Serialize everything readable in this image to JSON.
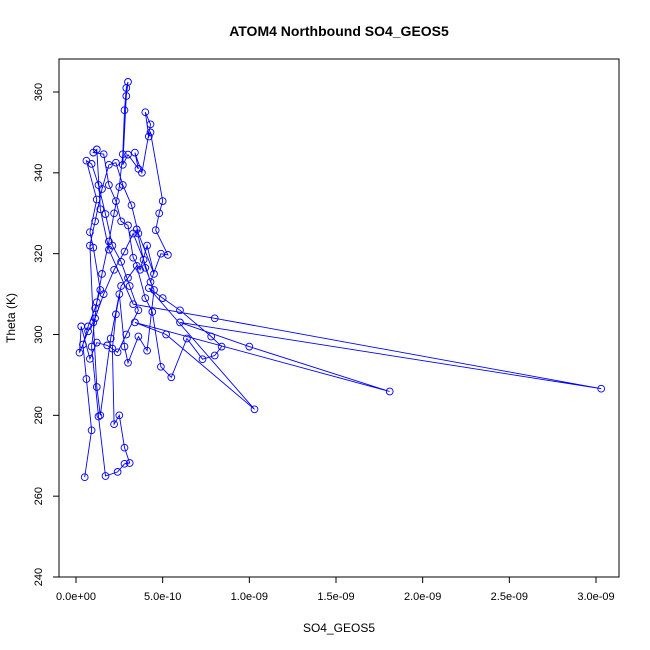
{
  "chart_data": {
    "type": "line",
    "title": "ATOM4 Northbound SO4_GEOS5",
    "xlabel": "SO4_GEOS5",
    "ylabel": "Theta (K)",
    "xlim": [
      0,
      3e-09
    ],
    "ylim": [
      240,
      365
    ],
    "x_ticks": [
      0,
      5e-10,
      1e-09,
      1.5e-09,
      2e-09,
      2.5e-09,
      3e-09
    ],
    "x_tick_labels": [
      "0.0e+00",
      "5.0e-10",
      "1.0e-09",
      "1.5e-09",
      "2.0e-09",
      "2.5e-09",
      "3.0e-09"
    ],
    "y_ticks": [
      240,
      260,
      280,
      300,
      320,
      340,
      360
    ],
    "y_tick_labels": [
      "240",
      "260",
      "280",
      "300",
      "320",
      "340",
      "360"
    ],
    "grid": false,
    "marker": "open-circle",
    "series": [
      {
        "color": "#0000ff",
        "points": [
          [
            5e-11,
            264.7
          ],
          [
            9e-11,
            276.3
          ],
          [
            6e-11,
            289.0
          ],
          [
            4e-11,
            297.5
          ],
          [
            7e-11,
            302.0
          ],
          [
            1.1e-10,
            306.5
          ],
          [
            1.4e-10,
            311.0
          ],
          [
            1e-10,
            321.5
          ],
          [
            8e-11,
            325.3
          ],
          [
            1.2e-10,
            333.4
          ],
          [
            6e-11,
            343.0
          ],
          [
            9e-11,
            342.2
          ],
          [
            1.3e-10,
            337.0
          ],
          [
            1.7e-10,
            329.8
          ],
          [
            2.1e-10,
            322.0
          ],
          [
            2.6e-10,
            318.0
          ],
          [
            3.1e-10,
            312.0
          ],
          [
            3.6e-10,
            306.0
          ],
          [
            2.9e-10,
            300.0
          ],
          [
            2.4e-10,
            295.6
          ],
          [
            1.8e-10,
            297.3
          ],
          [
            1.2e-10,
            298.0
          ],
          [
            8e-11,
            294.0
          ],
          [
            3e-11,
            302.0
          ],
          [
            2e-11,
            295.5
          ],
          [
            7e-11,
            300.8
          ],
          [
            1.1e-10,
            304.0
          ],
          [
            1.6e-10,
            310.0
          ],
          [
            2.2e-10,
            316.0
          ],
          [
            2.8e-10,
            320.5
          ],
          [
            3.3e-10,
            325.0
          ],
          [
            3.9e-10,
            318.5
          ],
          [
            4.3e-10,
            313.0
          ],
          [
            4.9e-10,
            320.0
          ],
          [
            5.3e-10,
            319.7
          ],
          [
            4.6e-10,
            325.8
          ],
          [
            4.8e-10,
            330.0
          ],
          [
            5e-10,
            333.0
          ],
          [
            4.3e-10,
            350.0
          ],
          [
            4.2e-10,
            349.0
          ],
          [
            4e-10,
            355.0
          ],
          [
            4.3e-10,
            352.0
          ],
          [
            3.8e-10,
            340.0
          ],
          [
            3.4e-10,
            345.0
          ],
          [
            3.6e-10,
            341.0
          ],
          [
            3e-10,
            344.5
          ],
          [
            2.7e-10,
            342.0
          ],
          [
            2.9e-10,
            359.0
          ],
          [
            3e-10,
            362.5
          ],
          [
            2.9e-10,
            361.0
          ],
          [
            2.8e-10,
            355.5
          ],
          [
            2.7e-10,
            344.6
          ],
          [
            2.5e-10,
            336.5
          ],
          [
            2.2e-10,
            330.0
          ],
          [
            1.9e-10,
            323.0
          ],
          [
            1.5e-10,
            315.0
          ],
          [
            1.2e-10,
            308.0
          ],
          [
            9e-11,
            297.0
          ],
          [
            1.3e-10,
            279.7
          ],
          [
            1.7e-10,
            265.0
          ],
          [
            2.4e-10,
            266.0
          ],
          [
            2.8e-10,
            268.0
          ],
          [
            3.1e-10,
            268.2
          ],
          [
            2.8e-10,
            272.0
          ],
          [
            2.5e-10,
            280.0
          ],
          [
            2.2e-10,
            277.8
          ],
          [
            2.1e-10,
            296.5
          ],
          [
            2.3e-10,
            305.0
          ],
          [
            2.6e-10,
            312.0
          ],
          [
            3e-10,
            314.0
          ],
          [
            3.5e-10,
            317.0
          ],
          [
            4e-10,
            309.0
          ],
          [
            4.4e-10,
            305.6
          ],
          [
            4.9e-10,
            292.0
          ],
          [
            5.5e-10,
            289.4
          ],
          [
            6.4e-10,
            299.0
          ],
          [
            7.3e-10,
            293.9
          ],
          [
            8e-10,
            294.8
          ],
          [
            8.4e-10,
            297.0
          ],
          [
            7.8e-10,
            299.5
          ],
          [
            6e-10,
            306.0
          ],
          [
            5e-10,
            309.0
          ],
          [
            4.2e-10,
            311.5
          ],
          [
            1.03e-09,
            281.5
          ],
          [
            5.2e-10,
            300.0
          ],
          [
            3.4e-10,
            303.0
          ],
          [
            1.81e-09,
            285.9
          ],
          [
            1e-09,
            297.0
          ],
          [
            6e-10,
            303.0
          ],
          [
            3.03e-09,
            286.6
          ],
          [
            8e-10,
            304.0
          ],
          [
            3.3e-10,
            307.5
          ],
          [
            1.9e-10,
            321.0
          ],
          [
            1.4e-10,
            331.0
          ],
          [
            1.2e-10,
            345.8
          ],
          [
            1e-10,
            345.0
          ],
          [
            1.6e-10,
            344.6
          ],
          [
            1.9e-10,
            337.0
          ],
          [
            2.3e-10,
            333.0
          ],
          [
            2.6e-10,
            328.0
          ],
          [
            3e-10,
            327.0
          ],
          [
            3.3e-10,
            319.0
          ],
          [
            3.7e-10,
            316.0
          ],
          [
            4.1e-10,
            322.0
          ],
          [
            4.5e-10,
            315.0
          ],
          [
            3.6e-10,
            325.0
          ],
          [
            3.2e-10,
            332.0
          ],
          [
            2.7e-10,
            337.0
          ],
          [
            2.3e-10,
            342.5
          ],
          [
            1.9e-10,
            342.0
          ],
          [
            1.5e-10,
            336.0
          ],
          [
            1.1e-10,
            328.0
          ],
          [
            8e-11,
            322.0
          ],
          [
            1e-10,
            303.0
          ],
          [
            1.2e-10,
            287.0
          ],
          [
            1.4e-10,
            280.0
          ],
          [
            2e-10,
            299.0
          ],
          [
            2.5e-10,
            310.0
          ],
          [
            2.8e-10,
            297.0
          ],
          [
            3e-10,
            293.0
          ],
          [
            3.6e-10,
            299.5
          ],
          [
            4.1e-10,
            296.0
          ],
          [
            4.5e-10,
            311.0
          ],
          [
            4e-10,
            316.5
          ],
          [
            3.5e-10,
            326.0
          ]
        ]
      }
    ]
  }
}
